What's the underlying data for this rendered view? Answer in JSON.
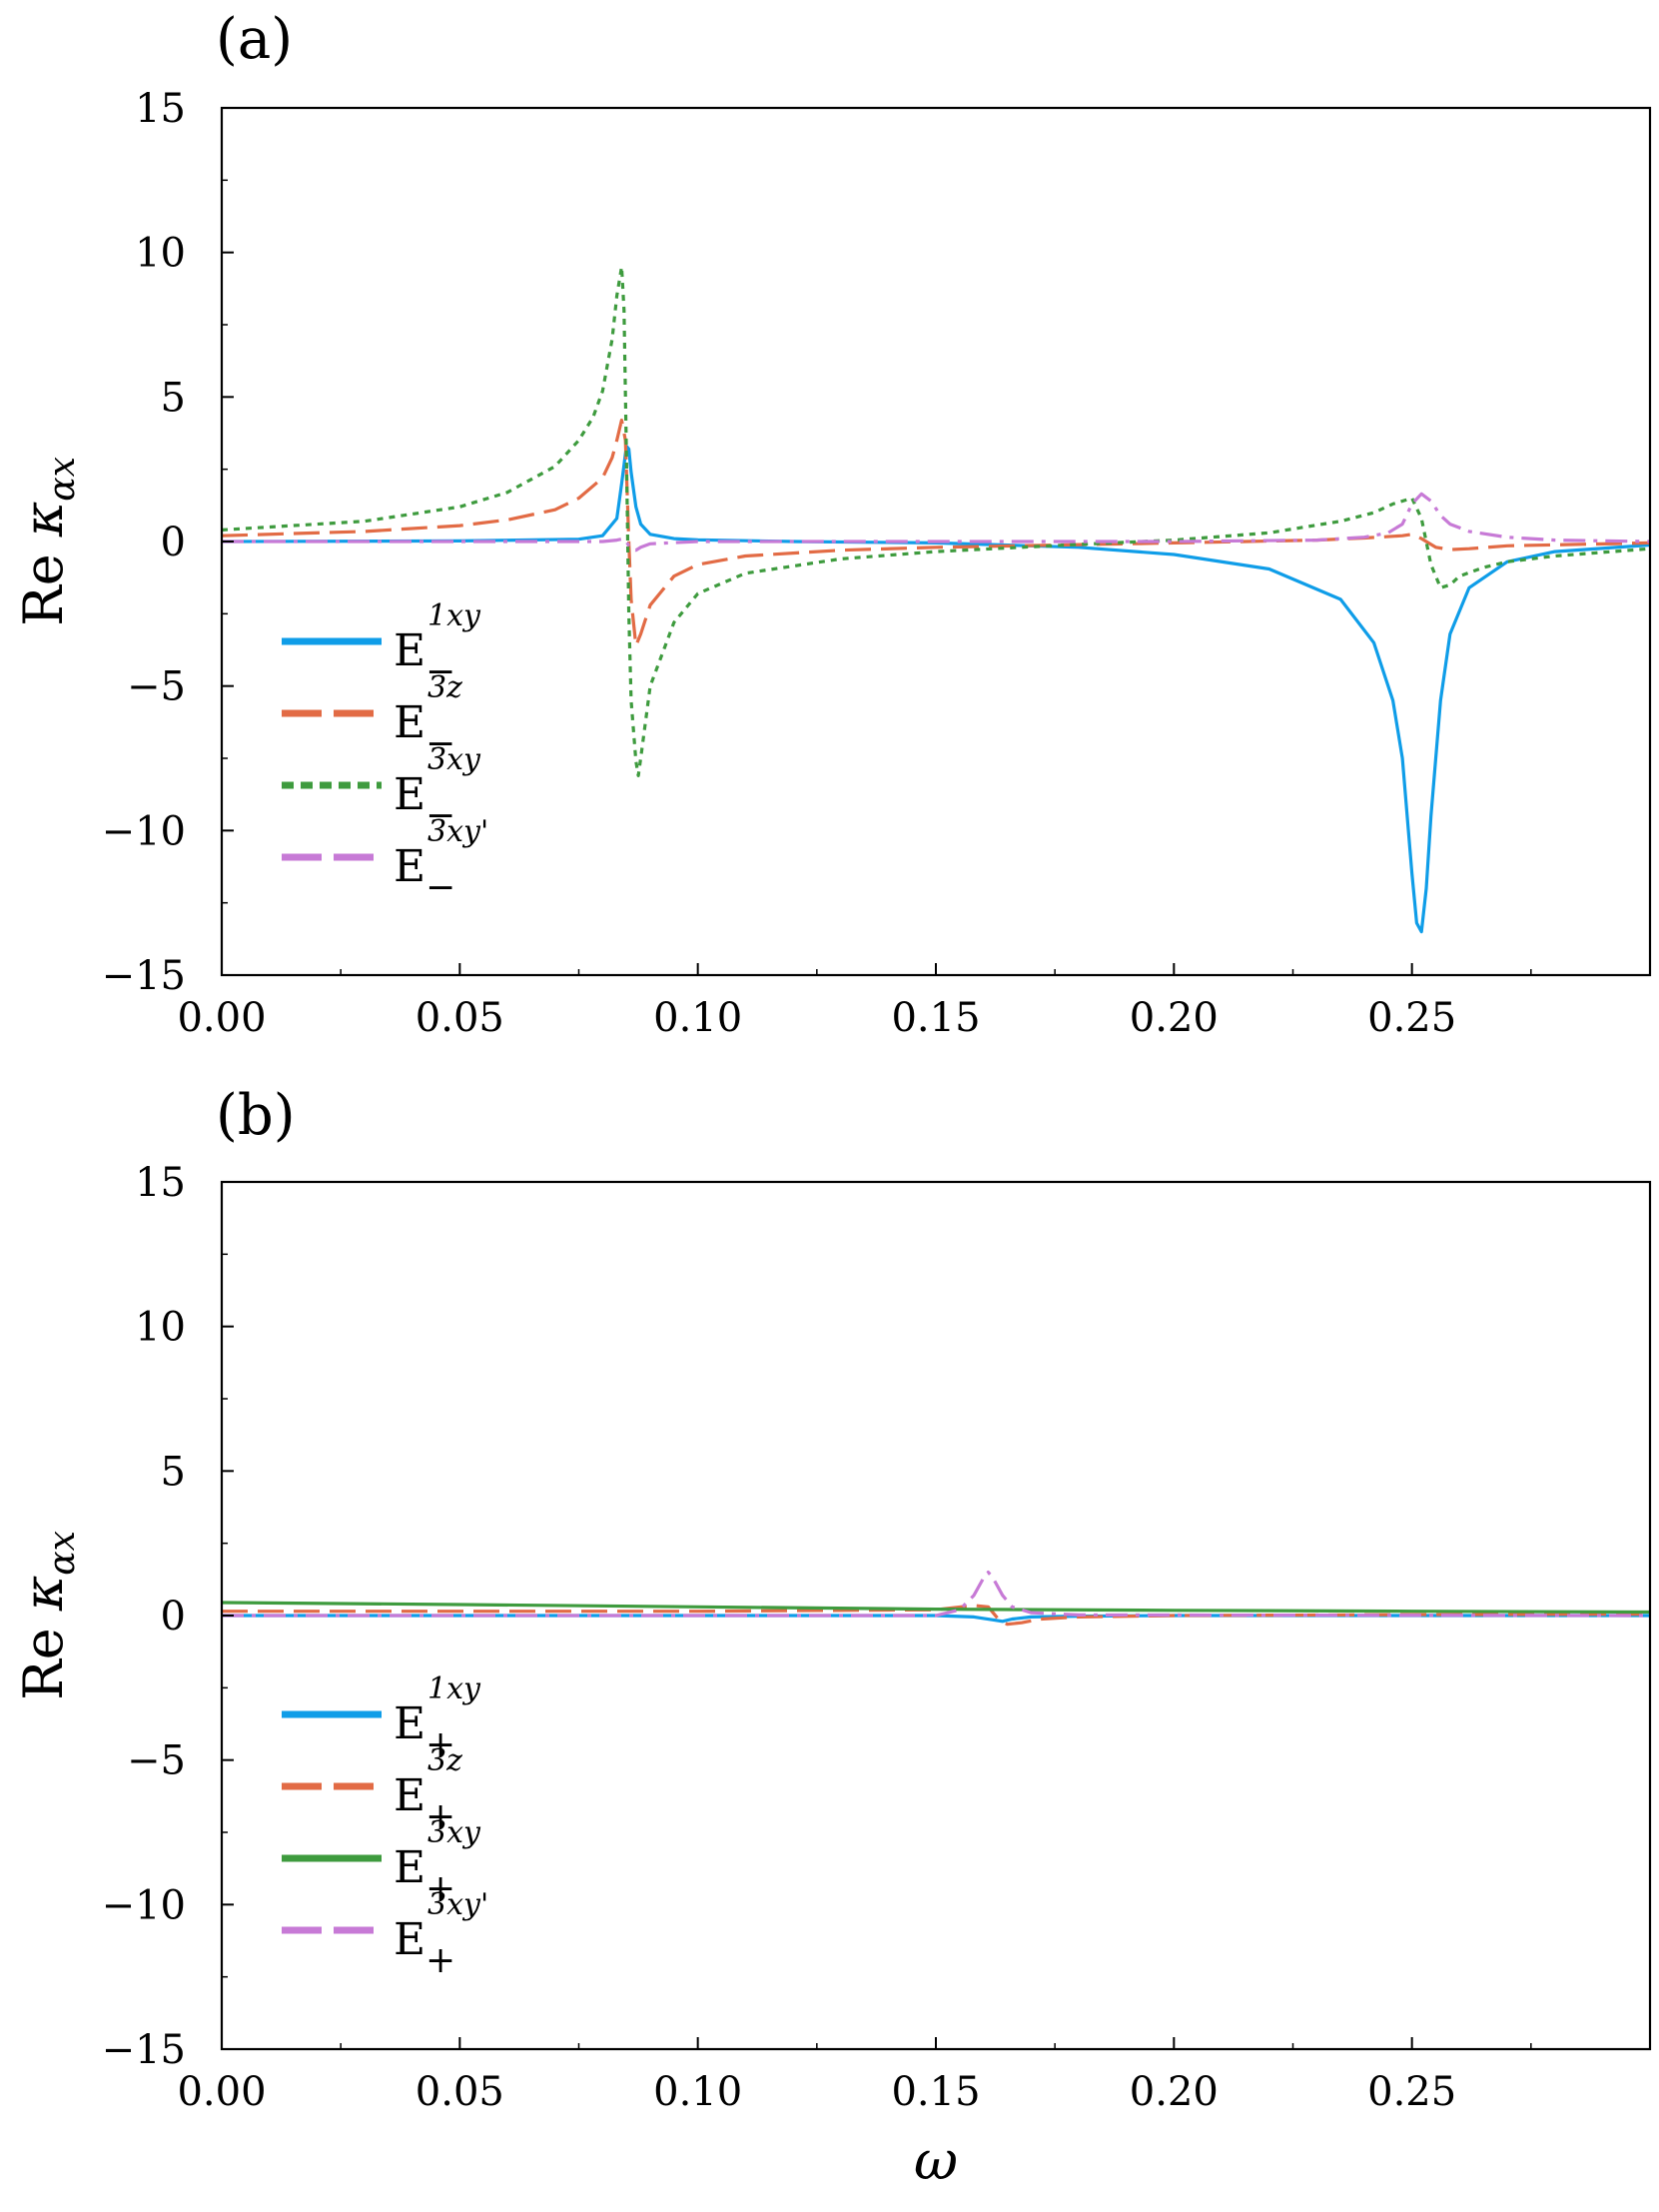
{
  "chart_data": [
    {
      "type": "line",
      "panel_label": "(a)",
      "ylabel_prefix": "Re",
      "ylabel_symbol": "κ",
      "ylabel_sub": "αx",
      "xlabel": "",
      "xlim": [
        0,
        0.3
      ],
      "ylim": [
        -15,
        15
      ],
      "xticks": [
        "0.00",
        "0.05",
        "0.10",
        "0.15",
        "0.20",
        "0.25"
      ],
      "yticks": [
        "15",
        "10",
        "5",
        "0",
        "−5",
        "−10",
        "−15"
      ],
      "legend_position": "lower-left",
      "series": [
        {
          "name": "E_−^{1xy}",
          "legend_base": "E",
          "legend_sup": "1xy",
          "legend_sub": "−",
          "color": "#0f9de8",
          "dash": "solid",
          "x": [
            0.0,
            0.05,
            0.075,
            0.08,
            0.083,
            0.084,
            0.085,
            0.0855,
            0.086,
            0.087,
            0.088,
            0.09,
            0.095,
            0.1,
            0.12,
            0.15,
            0.18,
            0.2,
            0.22,
            0.235,
            0.242,
            0.246,
            0.248,
            0.25,
            0.251,
            0.252,
            0.253,
            0.254,
            0.256,
            0.258,
            0.262,
            0.27,
            0.28,
            0.3
          ],
          "y": [
            0.0,
            0.02,
            0.08,
            0.2,
            0.8,
            2.0,
            3.3,
            3.2,
            2.4,
            1.2,
            0.6,
            0.25,
            0.1,
            0.06,
            0.0,
            -0.05,
            -0.2,
            -0.45,
            -0.95,
            -2.0,
            -3.5,
            -5.5,
            -7.5,
            -11.5,
            -13.2,
            -13.5,
            -12.0,
            -9.5,
            -5.5,
            -3.2,
            -1.6,
            -0.7,
            -0.35,
            -0.12
          ]
        },
        {
          "name": "E_−^{3z}",
          "legend_base": "E",
          "legend_sup": "3z",
          "legend_sub": "−",
          "color": "#e26b45",
          "dash": "long-dash",
          "x": [
            0.0,
            0.03,
            0.05,
            0.06,
            0.07,
            0.075,
            0.08,
            0.082,
            0.083,
            0.084,
            0.0848,
            0.0855,
            0.086,
            0.087,
            0.088,
            0.09,
            0.095,
            0.1,
            0.11,
            0.13,
            0.15,
            0.2,
            0.23,
            0.24,
            0.248,
            0.25,
            0.252,
            0.255,
            0.258,
            0.262,
            0.27,
            0.3
          ],
          "y": [
            0.2,
            0.35,
            0.55,
            0.75,
            1.1,
            1.5,
            2.2,
            2.9,
            3.5,
            4.2,
            3.5,
            0.0,
            -2.0,
            -3.6,
            -3.2,
            -2.2,
            -1.2,
            -0.8,
            -0.5,
            -0.3,
            -0.2,
            -0.05,
            0.05,
            0.12,
            0.2,
            0.25,
            0.1,
            -0.2,
            -0.28,
            -0.25,
            -0.15,
            -0.05
          ]
        },
        {
          "name": "E_−^{3xy}",
          "legend_base": "E",
          "legend_sup": "3xy",
          "legend_sub": "−",
          "color": "#3e9b3e",
          "dash": "dot",
          "x": [
            0.0,
            0.03,
            0.05,
            0.06,
            0.07,
            0.075,
            0.078,
            0.08,
            0.082,
            0.083,
            0.084,
            0.0845,
            0.085,
            0.0855,
            0.086,
            0.087,
            0.0875,
            0.088,
            0.09,
            0.095,
            0.1,
            0.11,
            0.13,
            0.15,
            0.18,
            0.2,
            0.22,
            0.235,
            0.242,
            0.246,
            0.25,
            0.252,
            0.254,
            0.256,
            0.258,
            0.26,
            0.265,
            0.27,
            0.28,
            0.3
          ],
          "y": [
            0.4,
            0.7,
            1.2,
            1.7,
            2.6,
            3.5,
            4.3,
            5.2,
            7.0,
            8.5,
            9.5,
            8.0,
            3.0,
            -2.5,
            -5.5,
            -7.6,
            -8.1,
            -7.5,
            -5.0,
            -2.8,
            -1.8,
            -1.1,
            -0.6,
            -0.35,
            -0.1,
            0.05,
            0.3,
            0.7,
            1.0,
            1.3,
            1.5,
            0.8,
            -0.8,
            -1.6,
            -1.5,
            -1.2,
            -0.9,
            -0.7,
            -0.5,
            -0.25
          ]
        },
        {
          "name": "E_−^{3xy'}",
          "legend_base": "E",
          "legend_sup": "3xy'",
          "legend_sub": "−",
          "color": "#c77ad6",
          "dash": "dash-dot",
          "x": [
            0.0,
            0.07,
            0.08,
            0.083,
            0.0845,
            0.085,
            0.0855,
            0.086,
            0.087,
            0.088,
            0.09,
            0.1,
            0.15,
            0.2,
            0.23,
            0.24,
            0.245,
            0.248,
            0.25,
            0.252,
            0.254,
            0.256,
            0.258,
            0.262,
            0.27,
            0.28,
            0.3
          ],
          "y": [
            0.0,
            0.0,
            0.0,
            0.05,
            0.1,
            0.0,
            -0.15,
            -0.25,
            -0.3,
            -0.2,
            -0.08,
            0.0,
            0.0,
            0.0,
            0.05,
            0.15,
            0.3,
            0.6,
            1.3,
            1.65,
            1.4,
            0.9,
            0.6,
            0.35,
            0.15,
            0.05,
            0.0
          ]
        }
      ]
    },
    {
      "type": "line",
      "panel_label": "(b)",
      "ylabel_prefix": "Re",
      "ylabel_symbol": "κ",
      "ylabel_sub": "αx",
      "xlabel": "ω",
      "xlim": [
        0,
        0.3
      ],
      "ylim": [
        -15,
        15
      ],
      "xticks": [
        "0.00",
        "0.05",
        "0.10",
        "0.15",
        "0.20",
        "0.25"
      ],
      "yticks": [
        "15",
        "10",
        "5",
        "0",
        "−5",
        "−10",
        "−15"
      ],
      "legend_position": "lower-left",
      "series": [
        {
          "name": "E_+^{1xy}",
          "legend_base": "E",
          "legend_sup": "1xy",
          "legend_sub": "+",
          "color": "#0f9de8",
          "dash": "solid",
          "x": [
            0.0,
            0.1,
            0.15,
            0.158,
            0.162,
            0.164,
            0.166,
            0.17,
            0.18,
            0.2,
            0.25,
            0.3
          ],
          "y": [
            0.0,
            0.0,
            0.0,
            -0.05,
            -0.15,
            -0.2,
            -0.12,
            -0.05,
            -0.02,
            0.0,
            0.0,
            0.0
          ]
        },
        {
          "name": "E_+^{3z}",
          "legend_base": "E",
          "legend_sup": "3z",
          "legend_sub": "+",
          "color": "#e26b45",
          "dash": "long-dash",
          "x": [
            0.0,
            0.05,
            0.1,
            0.15,
            0.158,
            0.161,
            0.163,
            0.165,
            0.168,
            0.172,
            0.18,
            0.2,
            0.25,
            0.3
          ],
          "y": [
            0.15,
            0.15,
            0.15,
            0.2,
            0.35,
            0.3,
            -0.1,
            -0.3,
            -0.25,
            -0.12,
            -0.05,
            0.0,
            0.03,
            0.05
          ]
        },
        {
          "name": "E_+^{3xy}",
          "legend_base": "E",
          "legend_sup": "3xy",
          "legend_sub": "+",
          "color": "#3e9b3e",
          "dash": "solid",
          "x": [
            0.0,
            0.05,
            0.1,
            0.15,
            0.2,
            0.25,
            0.3
          ],
          "y": [
            0.45,
            0.38,
            0.3,
            0.22,
            0.18,
            0.15,
            0.12
          ]
        },
        {
          "name": "E_+^{3xy'}",
          "legend_base": "E",
          "legend_sup": "3xy'",
          "legend_sub": "+",
          "color": "#c77ad6",
          "dash": "dash-dot",
          "x": [
            0.0,
            0.15,
            0.155,
            0.158,
            0.16,
            0.161,
            0.162,
            0.164,
            0.166,
            0.17,
            0.18,
            0.3
          ],
          "y": [
            0.0,
            0.0,
            0.2,
            0.7,
            1.3,
            1.5,
            1.3,
            0.7,
            0.3,
            0.1,
            0.02,
            0.0
          ]
        }
      ]
    }
  ]
}
